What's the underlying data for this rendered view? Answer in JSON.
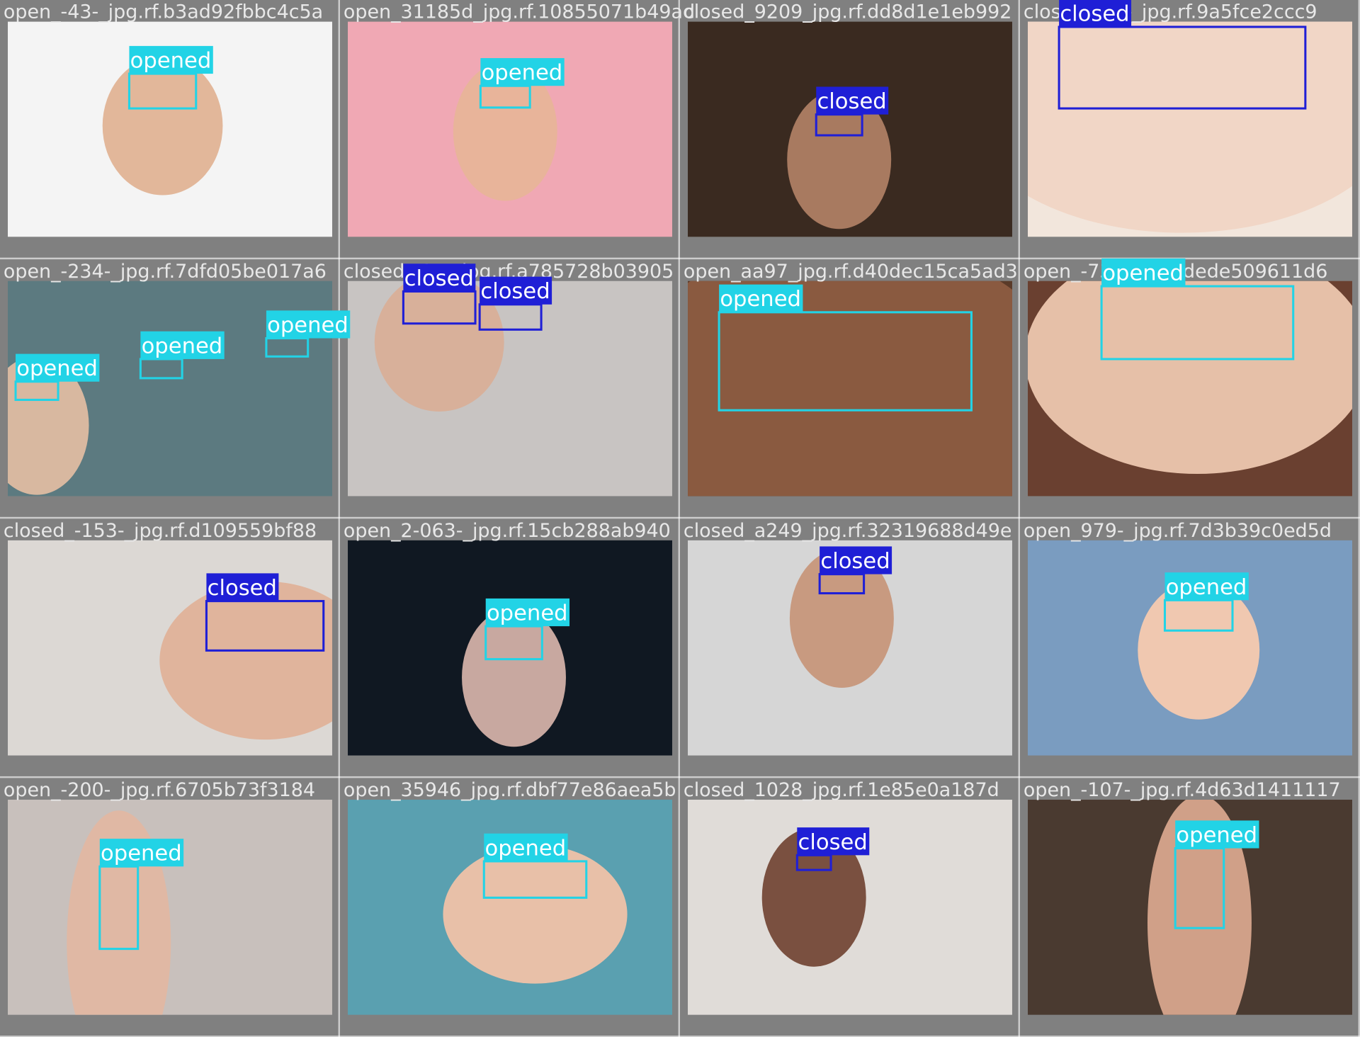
{
  "tiles": [
    {
      "filename": "open_-43-_jpg.rf.b3ad92fbbc4c5a",
      "detections": [
        {
          "label": "opened",
          "color": "#22d3e6"
        }
      ]
    },
    {
      "filename": "open_31185d_jpg.rf.10855071b49ad",
      "detections": [
        {
          "label": "opened",
          "color": "#22d3e6"
        }
      ]
    },
    {
      "filename": "closed_9209_jpg.rf.dd8d1e1eb992",
      "detections": [
        {
          "label": "closed",
          "color": "#1f1fd6"
        }
      ]
    },
    {
      "filename": "closed_-92-_jpg.rf.9a5fce2ccc9",
      "detections": [
        {
          "label": "closed",
          "color": "#1f1fd6"
        }
      ]
    },
    {
      "filename": "open_-234-_jpg.rf.7dfd05be017a6",
      "detections": [
        {
          "label": "opened",
          "color": "#22d3e6"
        },
        {
          "label": "opened",
          "color": "#22d3e6"
        },
        {
          "label": "opened",
          "color": "#22d3e6"
        }
      ]
    },
    {
      "filename": "closed_-37-_jpg.rf.a785728b03905",
      "detections": [
        {
          "label": "closed",
          "color": "#1f1fd6"
        },
        {
          "label": "closed",
          "color": "#1f1fd6"
        }
      ]
    },
    {
      "filename": "open_aa97_jpg.rf.d40dec15ca5ad3",
      "detections": [
        {
          "label": "opened",
          "color": "#22d3e6"
        }
      ]
    },
    {
      "filename": "open_-73-_jpg.rf.dede509611d6",
      "detections": [
        {
          "label": "opened",
          "color": "#22d3e6"
        }
      ]
    },
    {
      "filename": "closed_-153-_jpg.rf.d109559bf88",
      "detections": [
        {
          "label": "closed",
          "color": "#1f1fd6"
        }
      ]
    },
    {
      "filename": "open_2-063-_jpg.rf.15cb288ab940",
      "detections": [
        {
          "label": "opened",
          "color": "#22d3e6"
        }
      ]
    },
    {
      "filename": "closed_a249_jpg.rf.32319688d49e",
      "detections": [
        {
          "label": "closed",
          "color": "#1f1fd6"
        }
      ]
    },
    {
      "filename": "open_979-_jpg.rf.7d3b39c0ed5d",
      "detections": [
        {
          "label": "opened",
          "color": "#22d3e6"
        }
      ]
    },
    {
      "filename": "open_-200-_jpg.rf.6705b73f3184",
      "detections": [
        {
          "label": "opened",
          "color": "#22d3e6"
        }
      ]
    },
    {
      "filename": "open_35946_jpg.rf.dbf77e86aea5b",
      "detections": [
        {
          "label": "opened",
          "color": "#22d3e6"
        }
      ]
    },
    {
      "filename": "closed_1028_jpg.rf.1e85e0a187d",
      "detections": [
        {
          "label": "closed",
          "color": "#1f1fd6"
        }
      ]
    },
    {
      "filename": "open_-107-_jpg.rf.4d63d1411117",
      "detections": [
        {
          "label": "opened",
          "color": "#22d3e6"
        }
      ]
    }
  ]
}
